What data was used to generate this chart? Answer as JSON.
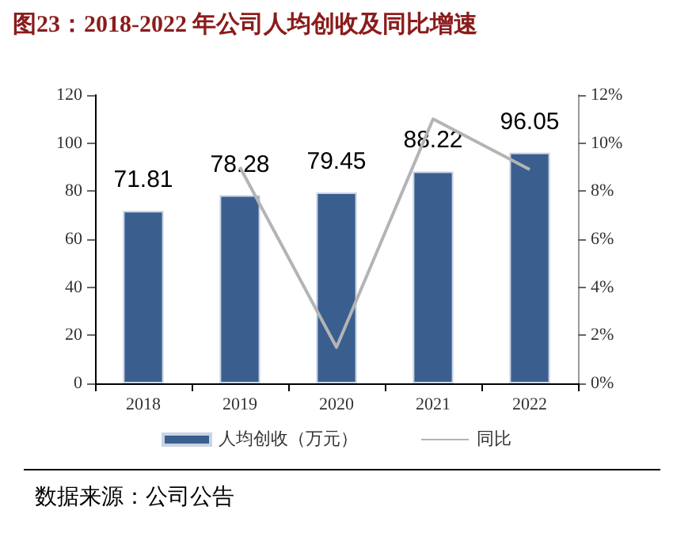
{
  "chart_data": {
    "type": "bar",
    "title": "图23：2018-2022 年公司人均创收及同比增速",
    "categories": [
      "2018",
      "2019",
      "2020",
      "2021",
      "2022"
    ],
    "series": [
      {
        "name": "人均创收（万元）",
        "color": "#3a5f8f",
        "values": [
          71.81,
          78.28,
          79.45,
          88.22,
          96.05
        ],
        "value_labels": [
          "71.81",
          "78.28",
          "79.45",
          "88.22",
          "96.05"
        ]
      },
      {
        "name": "同比",
        "type": "line",
        "axis": "y2",
        "color": "#b4b4b4",
        "values": [
          null,
          9.0,
          1.5,
          11.0,
          8.9
        ]
      }
    ],
    "ylim": [
      0,
      120
    ],
    "yticks": [
      0,
      20,
      40,
      60,
      80,
      100,
      120
    ],
    "y2lim": [
      0,
      12
    ],
    "y2ticks": [
      {
        "value": 0,
        "label": "0%"
      },
      {
        "value": 2,
        "label": "2%"
      },
      {
        "value": 4,
        "label": "4%"
      },
      {
        "value": 6,
        "label": "6%"
      },
      {
        "value": 8,
        "label": "8%"
      },
      {
        "value": 10,
        "label": "10%"
      },
      {
        "value": 12,
        "label": "12%"
      }
    ],
    "grid": false,
    "legend": "bottom",
    "marker": "none",
    "annotations": [
      "数据来源：公司公告"
    ]
  }
}
